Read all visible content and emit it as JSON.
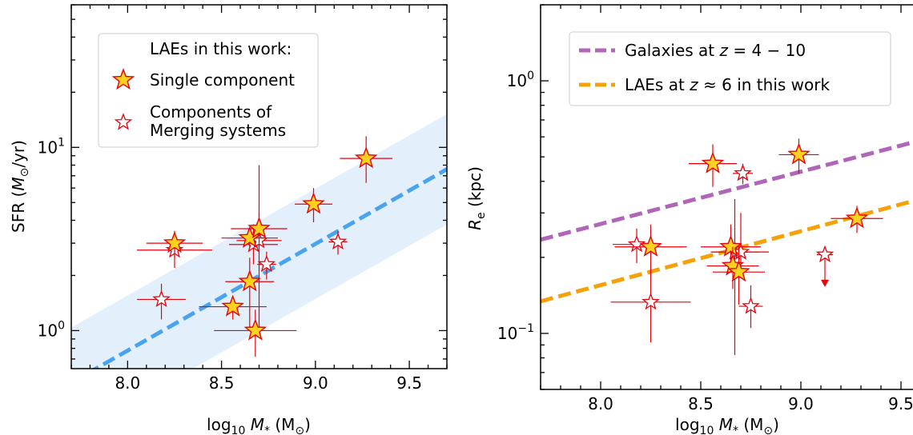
{
  "chart_data": [
    {
      "type": "scatter",
      "panel": "left",
      "xlabel_main": "log",
      "xlabel_sub": "10",
      "xlabel_var": "M",
      "xlabel_var_sub": "*",
      "xlabel_unit": "(M",
      "xlabel_unit_sub": "⊙",
      "xlabel_unit_close": ")",
      "ylabel_main": "SFR (",
      "ylabel_var": "M",
      "ylabel_var_sub": "⊙",
      "ylabel_unit": "/yr)",
      "xlim": [
        7.7,
        9.7
      ],
      "ylim": [
        0.62,
        60
      ],
      "yscale": "log",
      "x_ticks": [
        8.0,
        8.5,
        9.0,
        9.5
      ],
      "x_tick_labels": [
        "8.0",
        "8.5",
        "9.0",
        "9.5"
      ],
      "y_major_ticks": [
        1,
        10
      ],
      "y_tick_labels": [
        {
          "base": "10",
          "exp": "0"
        },
        {
          "base": "10",
          "exp": "1"
        }
      ],
      "legend": {
        "title": "LAEs in this work:",
        "entries": [
          "Single component",
          "Components of",
          "Merging systems"
        ]
      },
      "relation": {
        "x": [
          7.7,
          9.7
        ],
        "y": [
          0.52,
          7.6
        ],
        "band_factor": 2.0
      },
      "series": [
        {
          "name": "Single component",
          "filled": true,
          "points": [
            {
              "x": 8.25,
              "y": 3.0,
              "xerr": 0.15,
              "ylo": 2.5,
              "yhi": 3.5
            },
            {
              "x": 8.56,
              "y": 1.35,
              "xerr": 0.18,
              "ylo": 1.15,
              "yhi": 1.55
            },
            {
              "x": 8.65,
              "y": 1.85,
              "xerr": 0.13,
              "ylo": 1.0,
              "yhi": 2.5
            },
            {
              "x": 8.65,
              "y": 3.2,
              "xerr": 0.15,
              "ylo": 2.8,
              "yhi": 3.6
            },
            {
              "x": 8.68,
              "y": 1.0,
              "xerr": 0.22,
              "ylo": 0.72,
              "yhi": 1.3
            },
            {
              "x": 8.7,
              "y": 3.6,
              "xerr": 0.15,
              "ylo": 3.0,
              "yhi": 4.4
            },
            {
              "x": 8.99,
              "y": 4.9,
              "xerr": 0.1,
              "ylo": 3.9,
              "yhi": 6.0
            },
            {
              "x": 9.27,
              "y": 8.7,
              "xerr": 0.14,
              "ylo": 6.4,
              "yhi": 11.5
            }
          ]
        },
        {
          "name": "Components of Merging systems",
          "filled": false,
          "points": [
            {
              "x": 8.18,
              "y": 1.48,
              "xerr": 0.13,
              "ylo": 1.15,
              "yhi": 1.8
            },
            {
              "x": 8.25,
              "y": 2.75,
              "xerr": 0.2,
              "ylo": 2.2,
              "yhi": 3.3
            },
            {
              "x": 8.67,
              "y": 2.95,
              "xerr": 0.13,
              "ylo": 2.3,
              "yhi": 3.8
            },
            {
              "x": 8.7,
              "y": 3.1,
              "xerr": 0.12,
              "ylo": 1.0,
              "yhi": 8.0
            },
            {
              "x": 8.74,
              "y": 2.3,
              "xerr": 0.05,
              "ylo": 1.9,
              "yhi": 2.7
            },
            {
              "x": 9.12,
              "y": 3.05,
              "xerr": 0.05,
              "ylo": 2.6,
              "yhi": 3.5
            }
          ]
        }
      ]
    },
    {
      "type": "scatter",
      "panel": "right",
      "xlabel_main": "log",
      "xlabel_sub": "10",
      "xlabel_var": "M",
      "xlabel_var_sub": "*",
      "xlabel_unit": "(M",
      "xlabel_unit_sub": "⊙",
      "xlabel_unit_close": ")",
      "ylabel_var": "R",
      "ylabel_var_sub": "e",
      "ylabel_unit": " (kpc)",
      "xlim": [
        7.7,
        9.7
      ],
      "ylim": [
        0.06,
        2.0
      ],
      "yscale": "log",
      "x_ticks": [
        8.0,
        8.5,
        9.0,
        9.5
      ],
      "x_tick_labels": [
        "8.0",
        "8.5",
        "9.0",
        "9.5"
      ],
      "y_major_ticks": [
        0.1,
        1.0
      ],
      "y_tick_labels": [
        {
          "base": "10",
          "exp": "−1"
        },
        {
          "base": "10",
          "exp": "0"
        }
      ],
      "legend": {
        "entries": [
          {
            "prefix": "Galaxies at ",
            "var": "z",
            "suffix": " = 4 − 10",
            "color": "#b065b8"
          },
          {
            "prefix": "LAEs at ",
            "var": "z",
            "suffix": " ≈ 6 in this work",
            "color": "#f5a20a"
          }
        ]
      },
      "lines": [
        {
          "name": "Galaxies at z = 4 − 10",
          "color": "#b065b8",
          "x": [
            7.7,
            9.7
          ],
          "y": [
            0.235,
            0.61
          ]
        },
        {
          "name": "LAEs at z ≈ 6 in this work",
          "color": "#f5a20a",
          "x": [
            7.7,
            9.7
          ],
          "y": [
            0.134,
            0.358
          ]
        }
      ],
      "series": [
        {
          "name": "Single component",
          "filled": true,
          "points": [
            {
              "x": 8.25,
              "y": 0.22,
              "xerr": 0.18,
              "ylo": 0.17,
              "yhi": 0.27
            },
            {
              "x": 8.56,
              "y": 0.47,
              "xerr": 0.12,
              "ylo": 0.38,
              "yhi": 0.56
            },
            {
              "x": 8.65,
              "y": 0.22,
              "xerr": 0.15,
              "ylo": 0.18,
              "yhi": 0.27
            },
            {
              "x": 8.66,
              "y": 0.185,
              "xerr": 0.13,
              "ylo": 0.15,
              "yhi": 0.22
            },
            {
              "x": 8.69,
              "y": 0.175,
              "xerr": 0.13,
              "ylo": 0.13,
              "yhi": 0.22
            },
            {
              "x": 8.99,
              "y": 0.51,
              "xerr": 0.1,
              "ylo": 0.43,
              "yhi": 0.59
            },
            {
              "x": 9.28,
              "y": 0.285,
              "xerr": 0.13,
              "ylo": 0.25,
              "yhi": 0.32
            }
          ]
        },
        {
          "name": "Components of Merging systems",
          "filled": false,
          "points": [
            {
              "x": 8.18,
              "y": 0.225,
              "xerr": 0.12,
              "ylo": 0.19,
              "yhi": 0.26
            },
            {
              "x": 8.25,
              "y": 0.133,
              "xerr": 0.2,
              "ylo": 0.092,
              "yhi": 0.18
            },
            {
              "x": 8.67,
              "y": 0.21,
              "xerr": 0.12,
              "ylo": 0.082,
              "yhi": 0.34
            },
            {
              "x": 8.7,
              "y": 0.21,
              "xerr": 0.14,
              "ylo": 0.17,
              "yhi": 0.3
            },
            {
              "x": 8.71,
              "y": 0.43,
              "xerr": 0.05,
              "ylo": 0.39,
              "yhi": 0.47
            },
            {
              "x": 8.75,
              "y": 0.128,
              "xerr": 0.06,
              "ylo": 0.105,
              "yhi": 0.155
            }
          ]
        }
      ],
      "upper_limits": [
        {
          "x": 9.12,
          "y": 0.205,
          "arrow_to": 0.155,
          "xerr": 0.04
        }
      ]
    }
  ],
  "colors": {
    "marker_fill": "#ffd21f",
    "marker_edge": "#e8000b",
    "errorbar": "#e8000b",
    "relation_line": "#4aa3ef",
    "relation_band": "#e3f0fc"
  }
}
